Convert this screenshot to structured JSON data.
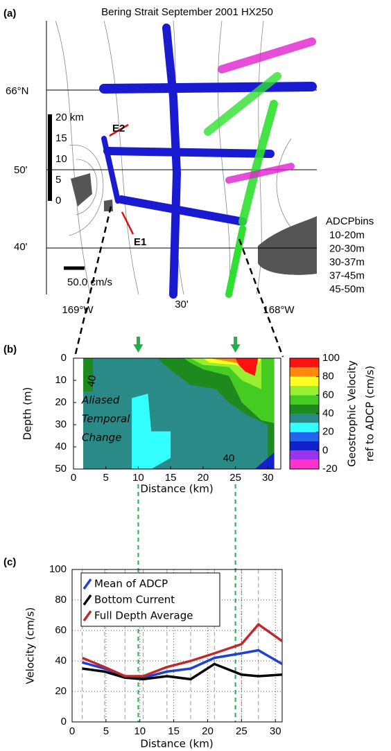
{
  "map": {
    "panel_label": "(a)",
    "title": "Bering Strait September 2001 HX250",
    "lat_labels": [
      "66°N",
      "50'",
      "40'"
    ],
    "lon_labels": [
      "169°W",
      "30'",
      "168°W"
    ],
    "scale_labels": [
      "20 km",
      "15",
      "10",
      "5",
      "0"
    ],
    "vector_scale": "50.0 cm/s",
    "arrow_labels": [
      "E2",
      "E1"
    ],
    "legend_title": "ADCPbins",
    "legend": [
      {
        "name": "10-20m",
        "color": "#e0102a"
      },
      {
        "name": "20-30m",
        "color": "#e020d0"
      },
      {
        "name": "30-37m",
        "color": "#30e030"
      },
      {
        "name": "37-45m",
        "color": "#1a1ad0"
      },
      {
        "name": "45-50m",
        "color": "#000000"
      }
    ]
  },
  "chart_data": [
    {
      "type": "contour",
      "panel_label": "(b)",
      "x_label": "Distance (km)",
      "y_label": "Depth (m)",
      "xlim": [
        0,
        32
      ],
      "xticks": [
        0,
        5,
        10,
        15,
        20,
        25,
        30
      ],
      "ylim": [
        50,
        0
      ],
      "yticks": [
        0,
        10,
        20,
        30,
        40,
        50
      ],
      "markers_x": [
        10,
        25
      ],
      "marker_color": "#22b04a",
      "annotation": [
        "Aliased",
        "Temporal",
        "Change"
      ],
      "contour_labels": [
        "40",
        "40"
      ],
      "colorbar": {
        "label": [
          "Geostrophic Velocity",
          "ref to ADCP (cm/s)"
        ],
        "lim": [
          -20,
          100
        ],
        "ticks": [
          100,
          80,
          60,
          40,
          20,
          0,
          -20
        ],
        "colors": [
          "#ff33cc",
          "#9933ee",
          "#1122cc",
          "#2266ee",
          "#33ffff",
          "#2a8a88",
          "#1e8a1e",
          "#44cc22",
          "#99ee33",
          "#ffff22",
          "#ff8811",
          "#ff1111",
          "#990000"
        ]
      }
    },
    {
      "type": "line",
      "panel_label": "(c)",
      "x_label": "Distance (km)",
      "y_label": "Velocity (cm/s)",
      "xlim": [
        0,
        31
      ],
      "xticks": [
        0,
        5,
        10,
        15,
        20,
        25,
        30
      ],
      "ylim": [
        0,
        100
      ],
      "yticks": [
        0,
        20,
        40,
        60,
        80,
        100
      ],
      "grid": true,
      "x": [
        1.5,
        4.8,
        7.8,
        10.5,
        14,
        17.5,
        21,
        25,
        27.5,
        31
      ],
      "series": [
        {
          "name": "Mean of ADCP",
          "color": "#1f3fd6",
          "values": [
            39,
            35,
            30,
            29,
            33,
            35,
            42,
            45,
            47,
            38
          ]
        },
        {
          "name": "Bottom Current",
          "color": "#000000",
          "values": [
            35,
            33,
            29,
            28,
            30,
            28,
            38,
            31,
            30,
            31
          ]
        },
        {
          "name": "Full Depth Average",
          "color": "#c0282a",
          "values": [
            42,
            36,
            30,
            30,
            36,
            40,
            45,
            51,
            64,
            53
          ]
        }
      ]
    }
  ]
}
